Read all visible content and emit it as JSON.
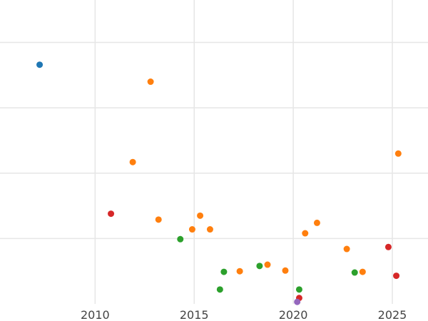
{
  "chart_data": {
    "type": "scatter",
    "title": "",
    "xlabel": "",
    "ylabel": "",
    "xlim": [
      2005.2,
      2026.8
    ],
    "ylim": [
      0,
      4.65
    ],
    "grid": true,
    "x_ticks": [
      2010,
      2015,
      2020,
      2025
    ],
    "x_tick_labels": [
      "2010",
      "2015",
      "2020",
      "2025"
    ],
    "y_grid_values": [
      1,
      2,
      3,
      4
    ],
    "colors": {
      "blue": "#1f77b4",
      "orange": "#ff7f0e",
      "green": "#2ca02c",
      "red": "#d62728",
      "purple": "#9467bd"
    },
    "points": [
      {
        "x": 2007.2,
        "y": 3.66,
        "color": "#1f77b4"
      },
      {
        "x": 2012.8,
        "y": 3.4,
        "color": "#ff7f0e"
      },
      {
        "x": 2011.9,
        "y": 2.17,
        "color": "#ff7f0e"
      },
      {
        "x": 2025.3,
        "y": 2.3,
        "color": "#ff7f0e"
      },
      {
        "x": 2010.8,
        "y": 1.38,
        "color": "#d62728"
      },
      {
        "x": 2013.2,
        "y": 1.29,
        "color": "#ff7f0e"
      },
      {
        "x": 2015.3,
        "y": 1.35,
        "color": "#ff7f0e"
      },
      {
        "x": 2014.9,
        "y": 1.14,
        "color": "#ff7f0e"
      },
      {
        "x": 2015.8,
        "y": 1.14,
        "color": "#ff7f0e"
      },
      {
        "x": 2014.3,
        "y": 0.99,
        "color": "#2ca02c"
      },
      {
        "x": 2021.2,
        "y": 1.24,
        "color": "#ff7f0e"
      },
      {
        "x": 2020.6,
        "y": 1.08,
        "color": "#ff7f0e"
      },
      {
        "x": 2022.7,
        "y": 0.84,
        "color": "#ff7f0e"
      },
      {
        "x": 2024.8,
        "y": 0.87,
        "color": "#d62728"
      },
      {
        "x": 2016.5,
        "y": 0.49,
        "color": "#2ca02c"
      },
      {
        "x": 2017.3,
        "y": 0.5,
        "color": "#ff7f0e"
      },
      {
        "x": 2018.3,
        "y": 0.58,
        "color": "#2ca02c"
      },
      {
        "x": 2018.7,
        "y": 0.6,
        "color": "#ff7f0e"
      },
      {
        "x": 2019.6,
        "y": 0.51,
        "color": "#ff7f0e"
      },
      {
        "x": 2023.1,
        "y": 0.48,
        "color": "#2ca02c"
      },
      {
        "x": 2023.5,
        "y": 0.49,
        "color": "#ff7f0e"
      },
      {
        "x": 2025.2,
        "y": 0.43,
        "color": "#d62728"
      },
      {
        "x": 2016.3,
        "y": 0.22,
        "color": "#2ca02c"
      },
      {
        "x": 2020.3,
        "y": 0.22,
        "color": "#2ca02c"
      },
      {
        "x": 2020.3,
        "y": 0.09,
        "color": "#d62728"
      },
      {
        "x": 2020.2,
        "y": 0.03,
        "color": "#9467bd"
      }
    ]
  }
}
